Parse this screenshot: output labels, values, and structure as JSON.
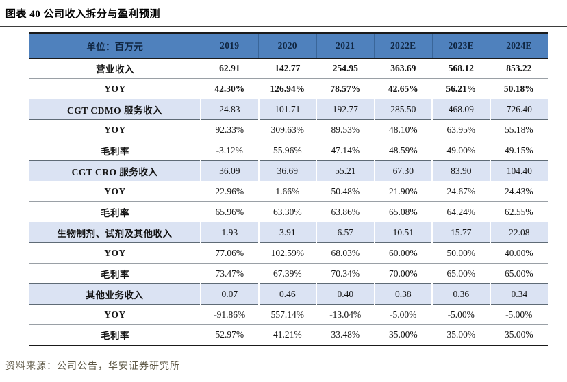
{
  "title": "图表 40 公司收入拆分与盈利预测",
  "source": "资料来源：公司公告，华安证券研究所",
  "colors": {
    "header_bg": "#4F81BD",
    "header_text": "#0F2540",
    "section_row_bg": "#DBE3F3",
    "source_text": "#5E5846"
  },
  "table": {
    "unit_header": "单位：百万元",
    "columns": [
      "2019",
      "2020",
      "2021",
      "2022E",
      "2023E",
      "2024E"
    ],
    "rows": [
      {
        "label": "营业收入",
        "style": "bold",
        "values": [
          "62.91",
          "142.77",
          "254.95",
          "363.69",
          "568.12",
          "853.22"
        ]
      },
      {
        "label": "YOY",
        "style": "bold",
        "values": [
          "42.30%",
          "126.94%",
          "78.57%",
          "42.65%",
          "56.21%",
          "50.18%"
        ]
      },
      {
        "label": "CGT CDMO 服务收入",
        "style": "section",
        "values": [
          "24.83",
          "101.71",
          "192.77",
          "285.50",
          "468.09",
          "726.40"
        ]
      },
      {
        "label": "YOY",
        "style": "normal",
        "values": [
          "92.33%",
          "309.63%",
          "89.53%",
          "48.10%",
          "63.95%",
          "55.18%"
        ]
      },
      {
        "label": "毛利率",
        "style": "normal",
        "values": [
          "-3.12%",
          "55.96%",
          "47.14%",
          "48.59%",
          "49.00%",
          "49.15%"
        ]
      },
      {
        "label": "CGT CRO 服务收入",
        "style": "section",
        "values": [
          "36.09",
          "36.69",
          "55.21",
          "67.30",
          "83.90",
          "104.40"
        ]
      },
      {
        "label": "YOY",
        "style": "normal",
        "values": [
          "22.96%",
          "1.66%",
          "50.48%",
          "21.90%",
          "24.67%",
          "24.43%"
        ]
      },
      {
        "label": "毛利率",
        "style": "normal",
        "values": [
          "65.96%",
          "63.30%",
          "63.86%",
          "65.08%",
          "64.24%",
          "62.55%"
        ]
      },
      {
        "label": "生物制剂、试剂及其他收入",
        "style": "section",
        "values": [
          "1.93",
          "3.91",
          "6.57",
          "10.51",
          "15.77",
          "22.08"
        ]
      },
      {
        "label": "YOY",
        "style": "normal",
        "values": [
          "77.06%",
          "102.59%",
          "68.03%",
          "60.00%",
          "50.00%",
          "40.00%"
        ]
      },
      {
        "label": "毛利率",
        "style": "normal",
        "values": [
          "73.47%",
          "67.39%",
          "70.34%",
          "70.00%",
          "65.00%",
          "65.00%"
        ]
      },
      {
        "label": "其他业务收入",
        "style": "section",
        "values": [
          "0.07",
          "0.46",
          "0.40",
          "0.38",
          "0.36",
          "0.34"
        ]
      },
      {
        "label": "YOY",
        "style": "normal",
        "values": [
          "-91.86%",
          "557.14%",
          "-13.04%",
          "-5.00%",
          "-5.00%",
          "-5.00%"
        ]
      },
      {
        "label": "毛利率",
        "style": "normal",
        "values": [
          "52.97%",
          "41.21%",
          "33.48%",
          "35.00%",
          "35.00%",
          "35.00%"
        ]
      }
    ]
  }
}
